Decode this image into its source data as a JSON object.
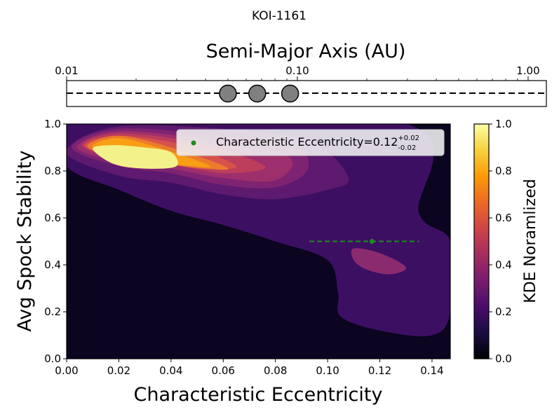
{
  "chart_data": [
    {
      "type": "scatter",
      "title": "KOI-1161",
      "xlabel": "Semi-Major Axis (AU)",
      "xscale": "log",
      "xlim": [
        0.01,
        1.2
      ],
      "xtick_labels": [
        "0.01",
        "0.10",
        "1.00"
      ],
      "xtick_values": [
        0.01,
        0.1,
        1.0
      ],
      "planets": [
        {
          "a": 0.05
        },
        {
          "a": 0.067
        },
        {
          "a": 0.093
        }
      ],
      "line_style": "dashed"
    },
    {
      "type": "heatmap",
      "subtype": "kde-contour",
      "xlabel": "Characteristic Eccentricity",
      "ylabel": "Avg Spock Stability",
      "xlim": [
        0.0,
        0.147
      ],
      "ylim": [
        0.0,
        1.0
      ],
      "xtick_labels": [
        "0.00",
        "0.02",
        "0.04",
        "0.06",
        "0.08",
        "0.10",
        "0.12",
        "0.14"
      ],
      "xtick_values": [
        0.0,
        0.02,
        0.04,
        0.06,
        0.08,
        0.1,
        0.12,
        0.14
      ],
      "ytick_labels": [
        "0.0",
        "0.2",
        "0.4",
        "0.6",
        "0.8",
        "1.0"
      ],
      "ytick_values": [
        0.0,
        0.2,
        0.4,
        0.6,
        0.8,
        1.0
      ],
      "colormap": "inferno",
      "kde_levels": [
        {
          "level": 0.1,
          "color": "#3d0f63",
          "points": [
            [
              0.0,
              0.82
            ],
            [
              0.0,
              1.0
            ],
            [
              0.13,
              1.0
            ],
            [
              0.135,
              0.62
            ],
            [
              0.147,
              0.5
            ],
            [
              0.147,
              0.2
            ],
            [
              0.14,
              0.1
            ],
            [
              0.12,
              0.12
            ],
            [
              0.105,
              0.18
            ],
            [
              0.104,
              0.28
            ],
            [
              0.1,
              0.42
            ],
            [
              0.08,
              0.5
            ],
            [
              0.06,
              0.57
            ],
            [
              0.04,
              0.63
            ],
            [
              0.02,
              0.72
            ]
          ]
        },
        {
          "level": 0.3,
          "color": "#5e1a6e",
          "points": [
            [
              0.0,
              0.88
            ],
            [
              0.02,
              0.99
            ],
            [
              0.07,
              0.97
            ],
            [
              0.095,
              0.92
            ],
            [
              0.108,
              0.77
            ],
            [
              0.1,
              0.72
            ],
            [
              0.08,
              0.68
            ],
            [
              0.06,
              0.7
            ],
            [
              0.04,
              0.75
            ],
            [
              0.02,
              0.78
            ]
          ]
        },
        {
          "level": 0.4,
          "color": "#7e2372",
          "points": [
            [
              0.002,
              0.9
            ],
            [
              0.02,
              0.98
            ],
            [
              0.06,
              0.95
            ],
            [
              0.088,
              0.9
            ],
            [
              0.092,
              0.8
            ],
            [
              0.08,
              0.73
            ],
            [
              0.06,
              0.74
            ],
            [
              0.04,
              0.79
            ],
            [
              0.02,
              0.82
            ]
          ]
        },
        {
          "level": 0.5,
          "color": "#9d2f6c",
          "points": [
            [
              0.004,
              0.9
            ],
            [
              0.02,
              0.97
            ],
            [
              0.055,
              0.93
            ],
            [
              0.085,
              0.86
            ],
            [
              0.08,
              0.76
            ],
            [
              0.06,
              0.77
            ],
            [
              0.04,
              0.81
            ],
            [
              0.02,
              0.84
            ]
          ]
        },
        {
          "level": 0.6,
          "color": "#bc3d5c",
          "points": [
            [
              0.006,
              0.91
            ],
            [
              0.02,
              0.96
            ],
            [
              0.05,
              0.92
            ],
            [
              0.076,
              0.82
            ],
            [
              0.06,
              0.79
            ],
            [
              0.04,
              0.83
            ],
            [
              0.02,
              0.85
            ]
          ]
        },
        {
          "level": 0.7,
          "color": "#d6524a",
          "points": [
            [
              0.007,
              0.91
            ],
            [
              0.02,
              0.95
            ],
            [
              0.045,
              0.91
            ],
            [
              0.065,
              0.82
            ],
            [
              0.05,
              0.81
            ],
            [
              0.035,
              0.84
            ],
            [
              0.018,
              0.86
            ]
          ]
        },
        {
          "level": 0.8,
          "color": "#ec7b2b",
          "points": [
            [
              0.008,
              0.91
            ],
            [
              0.02,
              0.95
            ],
            [
              0.04,
              0.9
            ],
            [
              0.062,
              0.81
            ],
            [
              0.045,
              0.82
            ],
            [
              0.03,
              0.85
            ],
            [
              0.015,
              0.87
            ]
          ]
        },
        {
          "level": 0.9,
          "color": "#f99e15",
          "points": [
            [
              0.01,
              0.91
            ],
            [
              0.02,
              0.94
            ],
            [
              0.035,
              0.9
            ],
            [
              0.055,
              0.82
            ],
            [
              0.04,
              0.83
            ],
            [
              0.025,
              0.86
            ],
            [
              0.015,
              0.88
            ]
          ]
        },
        {
          "level": 1.0,
          "color": "#f3f18a",
          "points": [
            [
              0.01,
              0.895
            ],
            [
              0.018,
              0.91
            ],
            [
              0.03,
              0.9
            ],
            [
              0.04,
              0.88
            ],
            [
              0.042,
              0.82
            ],
            [
              0.03,
              0.81
            ],
            [
              0.018,
              0.83
            ]
          ]
        },
        {
          "level": 0.4,
          "color": "#8a2b6e",
          "points": [
            [
              0.11,
              0.47
            ],
            [
              0.12,
              0.45
            ],
            [
              0.13,
              0.39
            ],
            [
              0.124,
              0.36
            ],
            [
              0.115,
              0.38
            ],
            [
              0.11,
              0.42
            ]
          ]
        }
      ],
      "characteristic_point": {
        "label": "Characteristic Eccentricity=0.12",
        "sup": "+0.02",
        "sub": "-0.02",
        "x": 0.117,
        "y": 0.5,
        "xerr": [
          0.093,
          0.135
        ],
        "color": "#1f8a1f"
      },
      "legend_position": "top-right"
    },
    {
      "type": "colorbar",
      "label": "KDE Noramlized",
      "range": [
        0.0,
        1.0
      ],
      "tick_labels": [
        "0.0",
        "0.2",
        "0.4",
        "0.6",
        "0.8",
        "1.0"
      ],
      "tick_values": [
        0.0,
        0.2,
        0.4,
        0.6,
        0.8,
        1.0
      ],
      "colormap_stops": [
        "#000004",
        "#1b0c41",
        "#4a0c6b",
        "#781c6d",
        "#a52c60",
        "#cf4446",
        "#ed6925",
        "#fb9b06",
        "#f7d13d",
        "#fcffa4"
      ]
    }
  ]
}
